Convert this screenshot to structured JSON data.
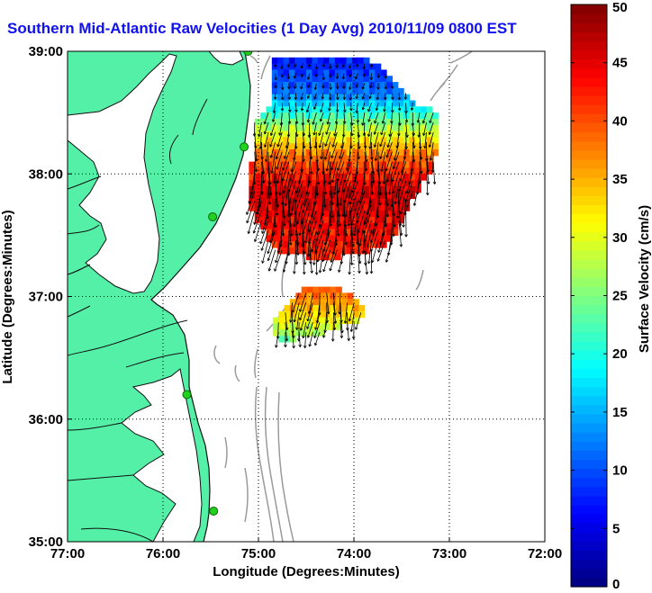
{
  "title": "Southern Mid-Atlantic Raw Velocities (1 Day Avg) 2010/11/09 0800 EST",
  "colors": {
    "land": "#55f0a8",
    "water": "#ffffff",
    "bathymetry": "#9a9a9a",
    "coast": "#111111",
    "station": "#22d01e",
    "grid": "#000000",
    "title": "#1010f0"
  },
  "chart_data": {
    "type": "map",
    "xlabel": "Longitude (Degrees:Minutes)",
    "ylabel": "Latitude (Degrees:Minutes)",
    "xlim": [
      -77,
      -72
    ],
    "ylim": [
      35,
      39
    ],
    "xticks": [
      {
        "value": -77,
        "label": "77:00"
      },
      {
        "value": -76,
        "label": "76:00"
      },
      {
        "value": -75,
        "label": "75:00"
      },
      {
        "value": -74,
        "label": "74:00"
      },
      {
        "value": -73,
        "label": "73:00"
      },
      {
        "value": -72,
        "label": "72:00"
      }
    ],
    "yticks": [
      {
        "value": 35,
        "label": "35:00"
      },
      {
        "value": 36,
        "label": "36:00"
      },
      {
        "value": 37,
        "label": "37:00"
      },
      {
        "value": 38,
        "label": "38:00"
      },
      {
        "value": 39,
        "label": "39:00"
      }
    ],
    "grid": true,
    "colorbar": {
      "label": "Surface Velocity (cm/s)",
      "min": 0,
      "max": 50,
      "ticks": [
        0,
        5,
        10,
        15,
        20,
        25,
        30,
        35,
        40,
        45,
        50
      ]
    },
    "stations": [
      {
        "lon": -75.11,
        "lat": 39.0
      },
      {
        "lon": -75.15,
        "lat": 38.22
      },
      {
        "lon": -75.48,
        "lat": 37.65
      },
      {
        "lon": -75.75,
        "lat": 36.2
      },
      {
        "lon": -75.47,
        "lat": 35.25
      }
    ],
    "velocity_regions": [
      {
        "name": "north",
        "polygon": [
          [
            -74.85,
            38.95
          ],
          [
            -73.85,
            38.95
          ],
          [
            -73.55,
            38.75
          ],
          [
            -73.3,
            38.55
          ],
          [
            -73.1,
            38.5
          ],
          [
            -73.1,
            38.25
          ],
          [
            -73.2,
            38.0
          ],
          [
            -73.4,
            37.8
          ],
          [
            -73.5,
            37.6
          ],
          [
            -73.6,
            37.45
          ],
          [
            -73.8,
            37.38
          ],
          [
            -74.2,
            37.32
          ],
          [
            -74.5,
            37.32
          ],
          [
            -74.85,
            37.38
          ],
          [
            -74.95,
            37.55
          ],
          [
            -75.05,
            37.65
          ],
          [
            -75.1,
            37.75
          ],
          [
            -75.1,
            37.9
          ],
          [
            -75.05,
            38.2
          ],
          [
            -75.05,
            38.45
          ],
          [
            -74.95,
            38.5
          ],
          [
            -74.85,
            38.55
          ]
        ],
        "speed_at_lat": [
          [
            38.95,
            7
          ],
          [
            38.65,
            12
          ],
          [
            38.4,
            26
          ],
          [
            38.15,
            38
          ],
          [
            37.85,
            46
          ],
          [
            37.6,
            44
          ],
          [
            37.35,
            42
          ]
        ]
      },
      {
        "name": "south",
        "polygon": [
          [
            -74.55,
            37.08
          ],
          [
            -74.15,
            37.08
          ],
          [
            -74.0,
            36.98
          ],
          [
            -73.85,
            36.88
          ],
          [
            -73.95,
            36.8
          ],
          [
            -74.25,
            36.72
          ],
          [
            -74.45,
            36.68
          ],
          [
            -74.65,
            36.65
          ],
          [
            -74.8,
            36.63
          ],
          [
            -74.85,
            36.75
          ],
          [
            -74.8,
            36.85
          ],
          [
            -74.65,
            36.95
          ]
        ],
        "speed_at_lat": [
          [
            37.08,
            40
          ],
          [
            36.95,
            36
          ],
          [
            36.85,
            33
          ],
          [
            36.7,
            27
          ],
          [
            36.63,
            22
          ]
        ]
      }
    ],
    "arrows": {
      "spacing_deg": [
        0.06,
        0.05
      ],
      "direction": "southward with slight westward set",
      "scale_deg_per_cms": 0.006
    }
  }
}
